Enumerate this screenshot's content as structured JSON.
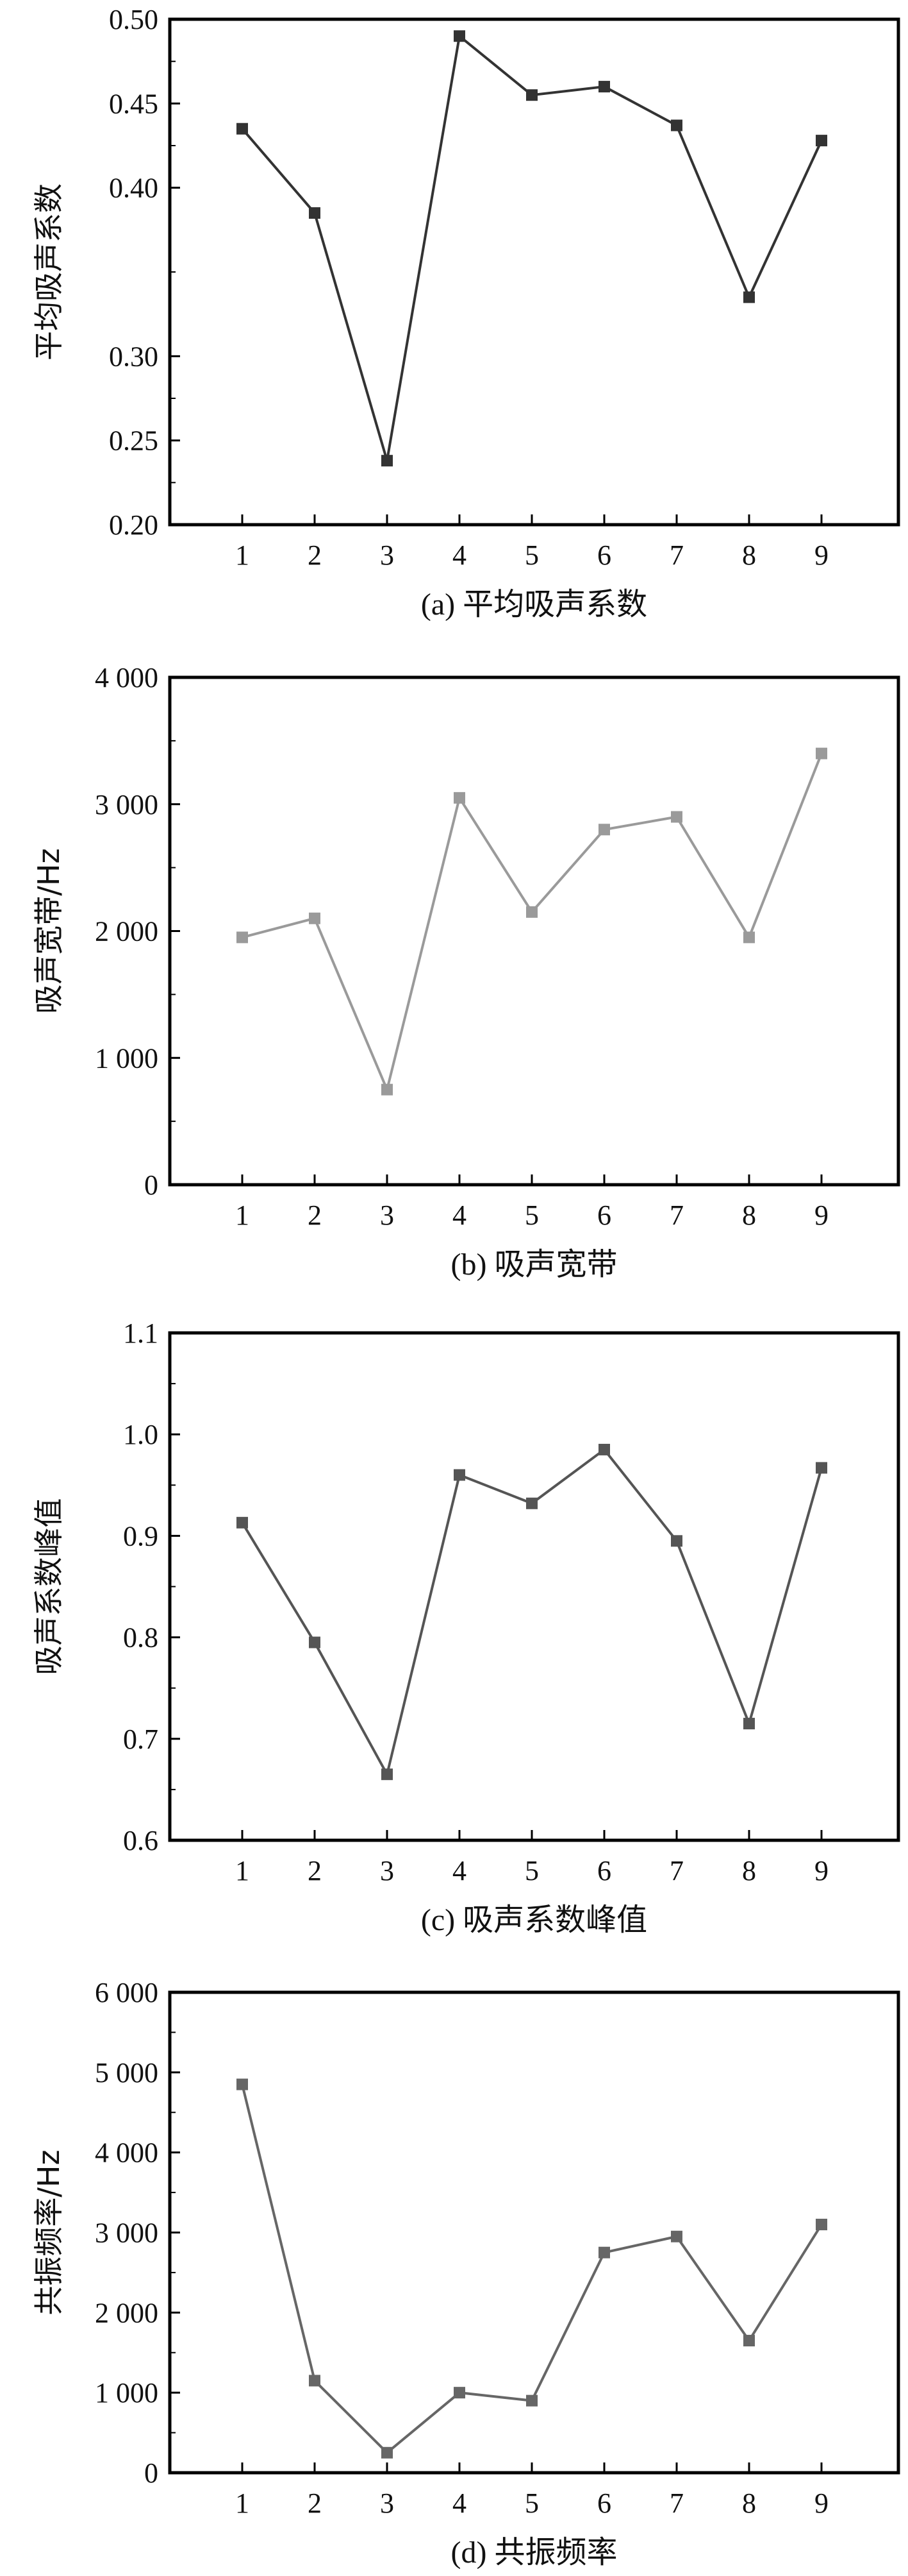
{
  "chart_data": [
    {
      "type": "line",
      "categories": [
        "1",
        "2",
        "3",
        "4",
        "5",
        "6",
        "7",
        "8",
        "9"
      ],
      "series": [
        {
          "values": [
            0.435,
            0.385,
            0.238,
            0.49,
            0.455,
            0.46,
            0.437,
            0.335,
            0.428
          ]
        }
      ],
      "ylabel": "平均吸声系数",
      "caption": "(a) 平均吸声系数",
      "ylim": [
        0.2,
        0.5
      ],
      "yticks": [
        0.2,
        0.25,
        0.3,
        0.4,
        0.45,
        0.5
      ],
      "ytick_labels": [
        "0.20",
        "0.25",
        "0.30",
        "0.40",
        "0.45",
        "0.50"
      ],
      "color": "#333333"
    },
    {
      "type": "line",
      "categories": [
        "1",
        "2",
        "3",
        "4",
        "5",
        "6",
        "7",
        "8",
        "9"
      ],
      "series": [
        {
          "values": [
            1950,
            2100,
            750,
            3050,
            2150,
            2800,
            2900,
            1950,
            3400
          ]
        }
      ],
      "ylabel": "吸声宽带/Hz",
      "caption": "(b) 吸声宽带",
      "ylim": [
        0,
        4000
      ],
      "yticks": [
        0,
        1000,
        2000,
        3000,
        4000
      ],
      "ytick_labels": [
        "0",
        "1 000",
        "2 000",
        "3 000",
        "4 000"
      ],
      "color": "#9a9a9a"
    },
    {
      "type": "line",
      "categories": [
        "1",
        "2",
        "3",
        "4",
        "5",
        "6",
        "7",
        "8",
        "9"
      ],
      "series": [
        {
          "values": [
            0.913,
            0.795,
            0.665,
            0.96,
            0.932,
            0.985,
            0.895,
            0.715,
            0.967
          ]
        }
      ],
      "ylabel": "吸声系数峰值",
      "caption": "(c) 吸声系数峰值",
      "ylim": [
        0.6,
        1.1
      ],
      "yticks": [
        0.6,
        0.7,
        0.8,
        0.9,
        1.0,
        1.1
      ],
      "ytick_labels": [
        "0.6",
        "0.7",
        "0.8",
        "0.9",
        "1.0",
        "1.1"
      ],
      "color": "#555555"
    },
    {
      "type": "line",
      "categories": [
        "1",
        "2",
        "3",
        "4",
        "5",
        "6",
        "7",
        "8",
        "9"
      ],
      "series": [
        {
          "values": [
            4850,
            1150,
            250,
            1000,
            900,
            2750,
            2950,
            1650,
            3100
          ]
        }
      ],
      "ylabel": "共振频率/Hz",
      "caption": "(d) 共振频率",
      "ylim": [
        0,
        6000
      ],
      "yticks": [
        0,
        1000,
        2000,
        3000,
        4000,
        5000,
        6000
      ],
      "ytick_labels": [
        "0",
        "1 000",
        "2 000",
        "3 000",
        "4 000",
        "5 000",
        "6 000"
      ],
      "color": "#666666"
    }
  ]
}
